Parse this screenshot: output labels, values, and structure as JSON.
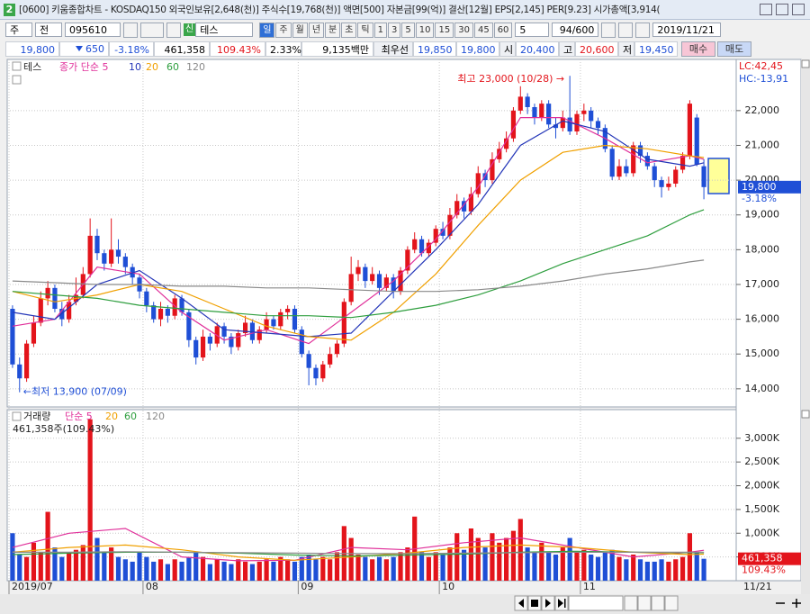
{
  "window": {
    "icon": "2",
    "title": "[0600] 키움종합차트 - KOSDAQ150 외국인보유[2,648(천)] 주식수[19,768(천)] 액면[500] 자본금[99(억)] 결산[12월] EPS[2,145] PER[9.23] 시가총액[3,914("
  },
  "toolbar": {
    "period": "주",
    "prev": "전",
    "code": "095610",
    "name_tag": "신",
    "name": "테스",
    "intervals": [
      "일",
      "주",
      "월",
      "년",
      "분",
      "초",
      "틱",
      "1",
      "3",
      "5",
      "10",
      "15",
      "30",
      "45",
      "60"
    ],
    "count": "5",
    "range": "94/600",
    "date": "2019/11/21"
  },
  "info": {
    "price": "19,800",
    "change": "650",
    "change_pct": "-3.18%",
    "volume": "461,358",
    "volume_ratio": "109.43%",
    "turnover": "2.33%",
    "amount": "9,135백만",
    "best_label": "최우선",
    "ask": "19,850",
    "bid": "19,800",
    "open_label": "시",
    "open": "20,400",
    "high_label": "고",
    "high": "20,600",
    "low_label": "저",
    "low": "19,450",
    "buy": "매수",
    "sell": "매도"
  },
  "chart_data": [
    {
      "type": "candlestick",
      "title": "테스",
      "up_color": "#e3141b",
      "down_color": "#1f4fd6",
      "open": [
        16300,
        14700,
        14300,
        15300,
        15900,
        16600,
        16900,
        16300,
        16000,
        16500,
        16700,
        17300,
        18400,
        17900,
        17600,
        18000,
        17800,
        17500,
        17200,
        16800,
        16400,
        16000,
        16300,
        16100,
        16600,
        16200,
        15400,
        14900,
        15500,
        15300,
        15800,
        15500,
        15200,
        15600,
        15900,
        15400,
        15700,
        16000,
        15800,
        16200,
        16300,
        15700,
        15000,
        14600,
        14300,
        14700,
        15000,
        15300,
        16500,
        17300,
        17500,
        17100,
        17300,
        16900,
        17200,
        16800,
        17400,
        18000,
        18300,
        17900,
        18200,
        18600,
        18400,
        19000,
        19400,
        19100,
        19600,
        20200,
        20000,
        20600,
        20900,
        21200,
        22000,
        22400,
        22100,
        21800,
        22200,
        21600,
        21500,
        21800,
        21400,
        21900,
        22000,
        21700,
        21500,
        20900,
        20100,
        20400,
        20200,
        21000,
        20700,
        20400,
        20000,
        19800,
        19900,
        20300,
        20700,
        21800,
        20400
      ],
      "high": [
        16400,
        14900,
        15400,
        16100,
        16800,
        17100,
        17000,
        16500,
        16700,
        17200,
        17500,
        18900,
        18600,
        18000,
        18900,
        18300,
        17900,
        17600,
        17300,
        16900,
        16500,
        16500,
        16400,
        16700,
        16700,
        16300,
        15500,
        15700,
        15600,
        15900,
        15900,
        15600,
        15700,
        16100,
        16000,
        15800,
        16200,
        16100,
        16300,
        16400,
        16400,
        15800,
        15100,
        14700,
        14800,
        15200,
        15400,
        16600,
        17800,
        17700,
        17600,
        17500,
        17400,
        17300,
        17300,
        17500,
        18100,
        18500,
        18400,
        18300,
        18700,
        18800,
        19200,
        19600,
        19500,
        19800,
        20400,
        20300,
        20800,
        21100,
        21400,
        22100,
        22700,
        22500,
        22200,
        22300,
        22300,
        21800,
        22000,
        23000,
        22000,
        22200,
        22100,
        21800,
        21600,
        21000,
        20600,
        20600,
        21100,
        21100,
        20800,
        20500,
        20100,
        20100,
        20400,
        20800,
        22300,
        21900,
        20600
      ],
      "low": [
        14600,
        13900,
        14200,
        15200,
        15800,
        16400,
        16200,
        15800,
        15900,
        16400,
        16600,
        17200,
        17700,
        17400,
        17500,
        17600,
        17300,
        17000,
        16600,
        16200,
        15900,
        15800,
        15900,
        16000,
        16100,
        15200,
        14700,
        14800,
        15100,
        15200,
        15300,
        15000,
        15100,
        15500,
        15300,
        15300,
        15600,
        15700,
        15700,
        16000,
        15600,
        14900,
        14100,
        14100,
        14200,
        14600,
        14900,
        15200,
        16400,
        17100,
        16900,
        17000,
        16700,
        16800,
        16600,
        16700,
        17300,
        17900,
        17800,
        17800,
        18100,
        18300,
        18300,
        18900,
        18900,
        19000,
        19500,
        19800,
        19900,
        20500,
        20800,
        21100,
        21900,
        21900,
        21600,
        21700,
        21500,
        21200,
        21400,
        21300,
        21300,
        21700,
        21500,
        21300,
        20800,
        20000,
        20000,
        20100,
        20100,
        20500,
        20300,
        19800,
        19500,
        19700,
        19800,
        20200,
        20600,
        20400,
        19450
      ],
      "close": [
        14700,
        14300,
        15300,
        15900,
        16600,
        16900,
        16300,
        16000,
        16500,
        16700,
        17300,
        18400,
        17900,
        17600,
        18000,
        17800,
        17500,
        17200,
        16800,
        16400,
        16000,
        16300,
        16100,
        16600,
        16200,
        15400,
        14900,
        15500,
        15300,
        15800,
        15500,
        15200,
        15600,
        15900,
        15400,
        15700,
        16000,
        15800,
        16200,
        16300,
        15700,
        15000,
        14600,
        14300,
        14700,
        15000,
        15300,
        16500,
        17300,
        17500,
        17100,
        17300,
        16900,
        17200,
        16800,
        17400,
        18000,
        18300,
        17900,
        18200,
        18600,
        18400,
        19000,
        19400,
        19100,
        19600,
        20200,
        20000,
        20600,
        20900,
        21200,
        22000,
        22400,
        22100,
        21800,
        22200,
        21600,
        21500,
        21800,
        21400,
        21900,
        22000,
        21700,
        21500,
        20900,
        20100,
        20400,
        20200,
        21000,
        20700,
        20400,
        20000,
        19800,
        19900,
        20300,
        20700,
        22200,
        20450,
        19800
      ],
      "ylim": [
        13530,
        23420
      ],
      "yticks": [
        {
          "value": 14000,
          "label": "14,000"
        },
        {
          "value": 15000,
          "label": "15,000"
        },
        {
          "value": 16000,
          "label": "16,000"
        },
        {
          "value": 17000,
          "label": "17,000"
        },
        {
          "value": 18000,
          "label": "18,000"
        },
        {
          "value": 19000,
          "label": "19,000"
        },
        {
          "value": 20000,
          "label": "20,000"
        },
        {
          "value": 21000,
          "label": "21,000"
        },
        {
          "value": 22000,
          "label": "22,000"
        }
      ],
      "ma_x": [
        0,
        6,
        12,
        18,
        24,
        30,
        36,
        42,
        48,
        54,
        60,
        66,
        72,
        78,
        84,
        90,
        96,
        98
      ],
      "series": [
        {
          "name": "종가 단순 5",
          "color": "#e0309a",
          "values": [
            15800,
            16000,
            17500,
            17300,
            16200,
            15400,
            15700,
            15300,
            16200,
            17100,
            18300,
            19800,
            21800,
            21800,
            21200,
            20500,
            20700,
            20600
          ]
        },
        {
          "name": "10",
          "color": "#2436b8",
          "values": [
            16200,
            16000,
            17000,
            17400,
            16600,
            15700,
            15600,
            15500,
            15600,
            16800,
            18000,
            19300,
            21000,
            21700,
            21400,
            20600,
            20400,
            20500
          ]
        },
        {
          "name": "20",
          "color": "#f0a000",
          "values": [
            16800,
            16500,
            16700,
            17000,
            16800,
            16300,
            15800,
            15500,
            15400,
            16200,
            17300,
            18700,
            20000,
            20800,
            21000,
            20900,
            20700,
            20650
          ]
        },
        {
          "name": "60",
          "color": "#2e9e3e",
          "values": [
            16800,
            16700,
            16600,
            16400,
            16300,
            16200,
            16100,
            16100,
            16050,
            16200,
            16400,
            16700,
            17100,
            17600,
            18000,
            18400,
            19000,
            19150
          ]
        },
        {
          "name": "120",
          "color": "#8a8a8a",
          "values": [
            17100,
            17050,
            17000,
            17000,
            16950,
            16950,
            16900,
            16900,
            16850,
            16800,
            16800,
            16850,
            16950,
            17100,
            17300,
            17450,
            17650,
            17700
          ]
        }
      ],
      "annotations": [
        "최고 23,000 (10/28) →",
        "←최저 13,900 (07/09)"
      ],
      "indicators": [
        "LC:42,45",
        "HC:-13,91"
      ]
    },
    {
      "type": "bar",
      "title": "거래량",
      "status": "461,358주(109.43%)",
      "values": [
        1000000,
        550000,
        500000,
        800000,
        600000,
        1450000,
        700000,
        500000,
        600000,
        650000,
        750000,
        3400000,
        900000,
        600000,
        700000,
        500000,
        450000,
        400000,
        600000,
        500000,
        400000,
        450000,
        350000,
        450000,
        400000,
        500000,
        600000,
        500000,
        350000,
        450000,
        400000,
        350000,
        450000,
        400000,
        350000,
        400000,
        450000,
        400000,
        500000,
        450000,
        400000,
        500000,
        550000,
        450000,
        500000,
        450000,
        600000,
        1150000,
        900000,
        550000,
        500000,
        450000,
        500000,
        450000,
        500000,
        600000,
        700000,
        1350000,
        600000,
        500000,
        600000,
        550000,
        700000,
        1000000,
        650000,
        1100000,
        900000,
        700000,
        1000000,
        800000,
        900000,
        1050000,
        1300000,
        700000,
        600000,
        800000,
        600000,
        550000,
        700000,
        900000,
        600000,
        650000,
        550000,
        500000,
        600000,
        650000,
        500000,
        450000,
        550000,
        450000,
        400000,
        400000,
        450000,
        400000,
        450000,
        500000,
        1000000,
        600000,
        461358
      ],
      "ylim": [
        0,
        3470000
      ],
      "yticks": [
        {
          "value": 500000,
          "label": "500K"
        },
        {
          "value": 1000000,
          "label": "1,000K"
        },
        {
          "value": 1500000,
          "label": "1,500K"
        },
        {
          "value": 2000000,
          "label": "2,000K"
        },
        {
          "value": 2500000,
          "label": "2,500K"
        },
        {
          "value": 3000000,
          "label": "3,000K"
        }
      ],
      "ma_x": [
        0,
        8,
        16,
        24,
        32,
        40,
        48,
        56,
        64,
        72,
        80,
        88,
        96,
        98
      ],
      "series": [
        {
          "name": "단순 5",
          "color": "#e0309a",
          "values": [
            700000,
            1000000,
            1100000,
            500000,
            420000,
            430000,
            700000,
            650000,
            800000,
            900000,
            700000,
            500000,
            600000,
            640000
          ]
        },
        {
          "name": "20",
          "color": "#f0a000",
          "values": [
            600000,
            700000,
            750000,
            650000,
            500000,
            430000,
            500000,
            580000,
            700000,
            750000,
            700000,
            600000,
            550000,
            560000
          ]
        },
        {
          "name": "60",
          "color": "#2e9e3e",
          "values": [
            550000,
            580000,
            600000,
            600000,
            580000,
            540000,
            520000,
            540000,
            560000,
            600000,
            620000,
            600000,
            590000,
            590000
          ]
        },
        {
          "name": "120",
          "color": "#8a8a8a",
          "values": [
            600000,
            600000,
            610000,
            600000,
            590000,
            580000,
            570000,
            570000,
            580000,
            590000,
            600000,
            600000,
            600000,
            600000
          ]
        }
      ],
      "xticks": [
        {
          "value": 0,
          "label": "2019/07"
        },
        {
          "value": 19,
          "label": "08"
        },
        {
          "value": 41,
          "label": "09"
        },
        {
          "value": 61,
          "label": "10"
        },
        {
          "value": 81,
          "label": "11"
        }
      ],
      "last_date": "11/21"
    }
  ]
}
